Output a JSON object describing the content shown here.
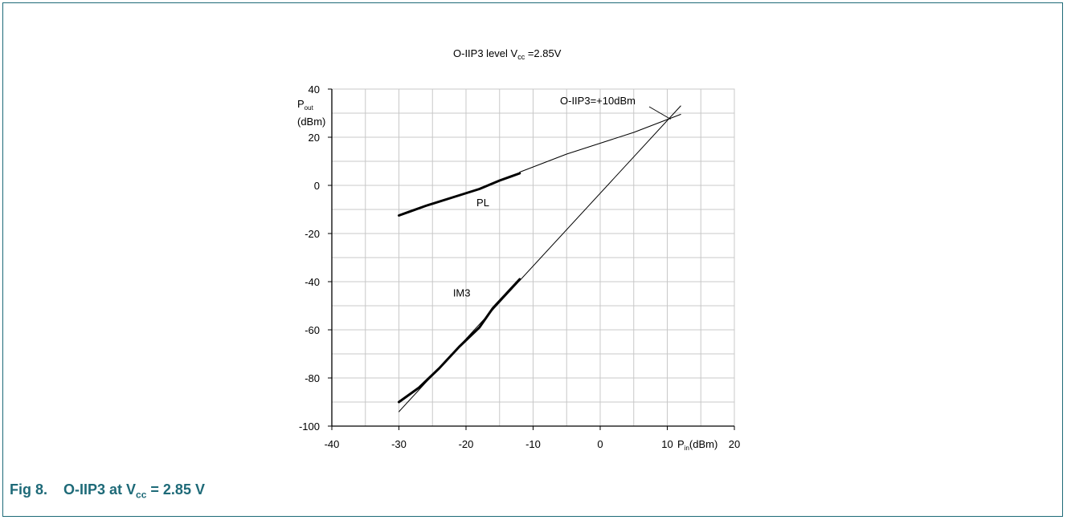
{
  "chart_data": {
    "type": "line",
    "title": "O-IIP3 level",
    "title_vcc": "V",
    "title_vcc_sub": "cc",
    "title_vcc_value": " =2.85V",
    "xlabel_p": "P",
    "xlabel_sub": "in",
    "xlabel_unit": "(dBm)",
    "ylabel_p": "P",
    "ylabel_sub": "out",
    "ylabel_unit": "(dBm)",
    "xlim": [
      -40,
      20
    ],
    "ylim": [
      -100,
      40
    ],
    "x_ticks": [
      -40,
      -30,
      -20,
      -10,
      0,
      10,
      20
    ],
    "y_ticks": [
      40,
      20,
      0,
      -20,
      -40,
      -60,
      -80,
      -100
    ],
    "grid": true,
    "series": [
      {
        "name": "PL",
        "style": "measured",
        "x": [
          -30,
          -26,
          -22,
          -18,
          -15,
          -12
        ],
        "y": [
          -12.5,
          -8.5,
          -5,
          -1.5,
          2,
          5
        ]
      },
      {
        "style": "fit",
        "x": [
          -12,
          -5,
          0,
          5,
          12
        ],
        "y": [
          5.5,
          13,
          17.5,
          22,
          29.5
        ]
      },
      {
        "name": "IM3",
        "style": "measured",
        "x": [
          -30,
          -27,
          -24,
          -21,
          -18,
          -16,
          -14,
          -12
        ],
        "y": [
          -90,
          -84,
          -76,
          -67,
          -59,
          -51,
          -45,
          -39
        ]
      },
      {
        "style": "fit",
        "x": [
          -30,
          12
        ],
        "y": [
          -94,
          33
        ]
      }
    ],
    "annotations": [
      {
        "text": "O-IIP3=+10dBm",
        "x": 10.5,
        "y": 27.5
      },
      {
        "text": "PL",
        "x": -17,
        "y": -7
      },
      {
        "text": "IM3",
        "x": -20.5,
        "y": -44.5
      }
    ]
  },
  "caption": {
    "number": "Fig 8.",
    "text_prefix": "O-IIP3 at V",
    "text_sub": "cc",
    "text_suffix": " = 2.85 V"
  }
}
